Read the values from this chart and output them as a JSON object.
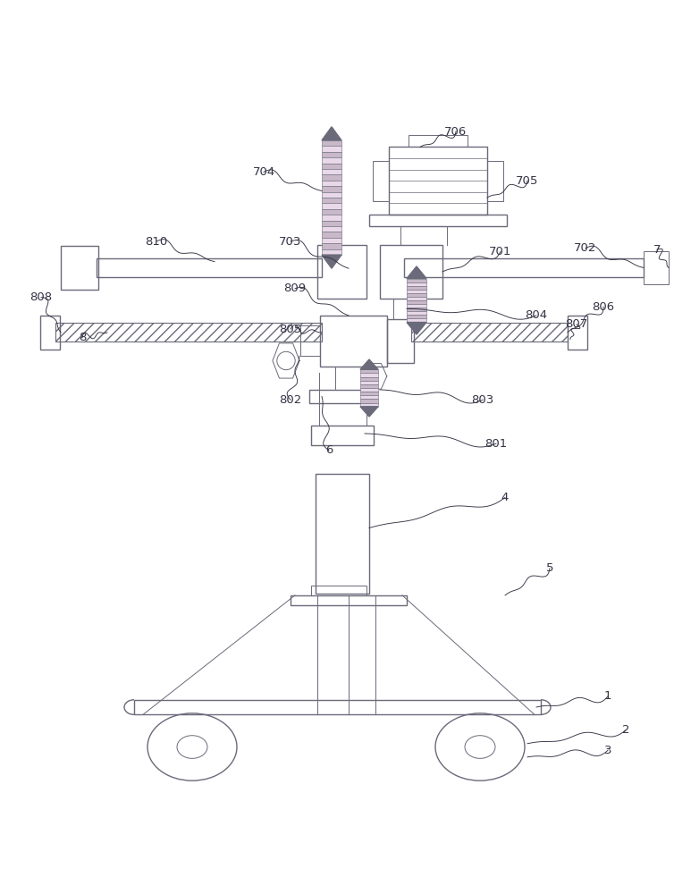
{
  "bg_color": "#ffffff",
  "line_color": "#6a6a7a",
  "label_color": "#222233",
  "label_font_size": 9.5,
  "fig_width": 7.54,
  "fig_height": 10.0
}
